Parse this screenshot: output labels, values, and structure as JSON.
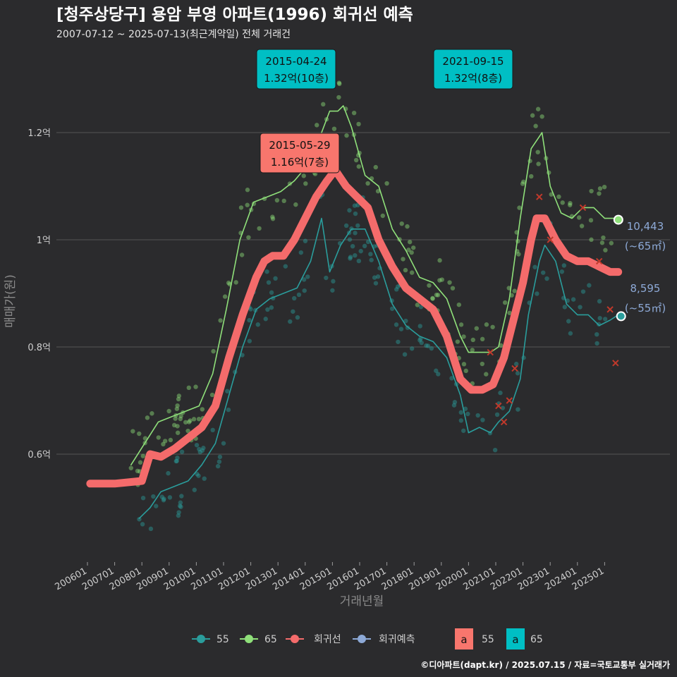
{
  "title": "[청주상당구] 용암 부영 아파트(1996) 회귀선 예측",
  "subtitle": "2007-07-12 ~ 2025-07-13(최근계약일) 전체 거래건",
  "caption": "©디아파트(dapt.kr) / 2025.07.15 / 자료=국토교통부 실거래가",
  "colors": {
    "background": "#2b2b2d",
    "grid": "#555555",
    "s55": "#2a9d9c",
    "s65": "#8fe07a",
    "regression": "#f46b6b",
    "forecast": "#8da9d6",
    "label55_fill": "#f8766d",
    "label65_fill": "#00bfc4"
  },
  "chart_data": {
    "type": "line",
    "title": "[청주상당구] 용암 부영 아파트(1996) 회귀선 예측",
    "subtitle": "2007-07-12 ~ 2025-07-13(최근계약일) 전체 거래건",
    "xlabel": "거래년월",
    "ylabel": "매매가(원)",
    "x_ticks": [
      "200601",
      "200701",
      "200801",
      "200901",
      "201001",
      "201101",
      "201201",
      "201301",
      "201401",
      "201501",
      "201601",
      "201701",
      "201801",
      "201901",
      "202001",
      "202101",
      "202201",
      "202301",
      "202401",
      "202501"
    ],
    "x_range": [
      2005.5,
      2026.4
    ],
    "ylim": [
      0.42,
      1.38
    ],
    "y_ticks": [
      0.6,
      0.8,
      1.0,
      1.2
    ],
    "y_tick_labels": [
      "0.6억",
      "0.8억",
      "1억",
      "1.2억"
    ],
    "grid": true,
    "series": [
      {
        "name": "55",
        "color": "#2a9d9c",
        "x": [
          2007.9,
          2008.3,
          2008.7,
          2009.2,
          2009.7,
          2010.2,
          2010.7,
          2011.2,
          2011.7,
          2012.2,
          2012.7,
          2013.2,
          2013.7,
          2014.2,
          2014.6,
          2014.9,
          2015.3,
          2015.7,
          2016.2,
          2016.7,
          2017.2,
          2017.7,
          2018.2,
          2018.7,
          2019.2,
          2019.7,
          2020.0,
          2020.4,
          2020.8,
          2021.1,
          2021.5,
          2021.9,
          2022.2,
          2022.6,
          2022.8,
          2023.2,
          2023.6,
          2024.0,
          2024.4,
          2024.8,
          2025.2,
          2025.5
        ],
        "y": [
          0.48,
          0.5,
          0.53,
          0.54,
          0.55,
          0.58,
          0.62,
          0.71,
          0.8,
          0.87,
          0.89,
          0.9,
          0.91,
          0.96,
          1.04,
          0.94,
          0.99,
          1.02,
          1.02,
          0.96,
          0.88,
          0.84,
          0.82,
          0.81,
          0.78,
          0.71,
          0.64,
          0.65,
          0.64,
          0.66,
          0.68,
          0.74,
          0.86,
          0.96,
          0.99,
          0.96,
          0.88,
          0.86,
          0.86,
          0.84,
          0.85,
          0.86
        ]
      },
      {
        "name": "65",
        "color": "#8fe07a",
        "x": [
          2007.6,
          2008.1,
          2008.6,
          2009.1,
          2009.6,
          2010.1,
          2010.6,
          2011.1,
          2011.6,
          2012.1,
          2012.6,
          2013.1,
          2013.6,
          2014.1,
          2014.6,
          2014.9,
          2015.2,
          2015.4,
          2015.7,
          2016.2,
          2016.7,
          2017.2,
          2017.7,
          2018.2,
          2018.7,
          2019.2,
          2019.7,
          2020.0,
          2020.4,
          2020.8,
          2021.1,
          2021.5,
          2021.9,
          2022.3,
          2022.7,
          2023.0,
          2023.4,
          2023.8,
          2024.2,
          2024.6,
          2025.0,
          2025.4
        ],
        "y": [
          0.58,
          0.62,
          0.66,
          0.67,
          0.68,
          0.69,
          0.75,
          0.87,
          1.0,
          1.07,
          1.08,
          1.09,
          1.11,
          1.14,
          1.2,
          1.24,
          1.24,
          1.25,
          1.21,
          1.12,
          1.1,
          1.02,
          0.98,
          0.93,
          0.92,
          0.89,
          0.82,
          0.79,
          0.79,
          0.79,
          0.8,
          0.89,
          1.04,
          1.17,
          1.2,
          1.1,
          1.05,
          1.04,
          1.06,
          1.06,
          1.04,
          1.04
        ]
      },
      {
        "name": "회귀선",
        "color": "#f46b6b",
        "x": [
          2006.1,
          2007.0,
          2008.0,
          2008.3,
          2008.7,
          2009.2,
          2009.7,
          2010.2,
          2010.7,
          2011.2,
          2011.7,
          2012.2,
          2012.5,
          2012.8,
          2013.2,
          2013.6,
          2014.0,
          2014.4,
          2014.8,
          2015.1,
          2015.5,
          2015.9,
          2016.3,
          2016.7,
          2017.2,
          2017.7,
          2018.2,
          2018.7,
          2019.2,
          2019.7,
          2020.1,
          2020.5,
          2020.9,
          2021.3,
          2021.7,
          2022.0,
          2022.3,
          2022.5,
          2022.8,
          2023.2,
          2023.6,
          2024.0,
          2024.4,
          2024.8,
          2025.2,
          2025.5
        ],
        "y": [
          0.545,
          0.545,
          0.55,
          0.6,
          0.595,
          0.61,
          0.63,
          0.65,
          0.69,
          0.78,
          0.86,
          0.93,
          0.96,
          0.97,
          0.97,
          1.0,
          1.04,
          1.08,
          1.11,
          1.13,
          1.1,
          1.08,
          1.06,
          1.0,
          0.95,
          0.91,
          0.89,
          0.87,
          0.82,
          0.74,
          0.72,
          0.72,
          0.73,
          0.78,
          0.86,
          0.92,
          1.0,
          1.04,
          1.04,
          1.0,
          0.97,
          0.96,
          0.96,
          0.95,
          0.94,
          0.94
        ]
      }
    ],
    "forecast_labels": [
      {
        "value": "10,443",
        "area": "(~65㎡)"
      },
      {
        "value": "8,595",
        "area": "(~55㎡)"
      }
    ],
    "annotations": [
      {
        "date": "2015-04-24",
        "price": "1.32억(10층)",
        "type": "65"
      },
      {
        "date": "2021-09-15",
        "price": "1.32억(8층)",
        "type": "65"
      },
      {
        "date": "2015-05-29",
        "price": "1.16억(7층)",
        "type": "55"
      }
    ],
    "legend": {
      "placement": "bottom",
      "items": [
        "55",
        "65",
        "회귀선",
        "회귀예측"
      ],
      "label_boxes": [
        {
          "symbol": "a",
          "label": "55"
        },
        {
          "symbol": "a",
          "label": "65"
        }
      ]
    }
  }
}
